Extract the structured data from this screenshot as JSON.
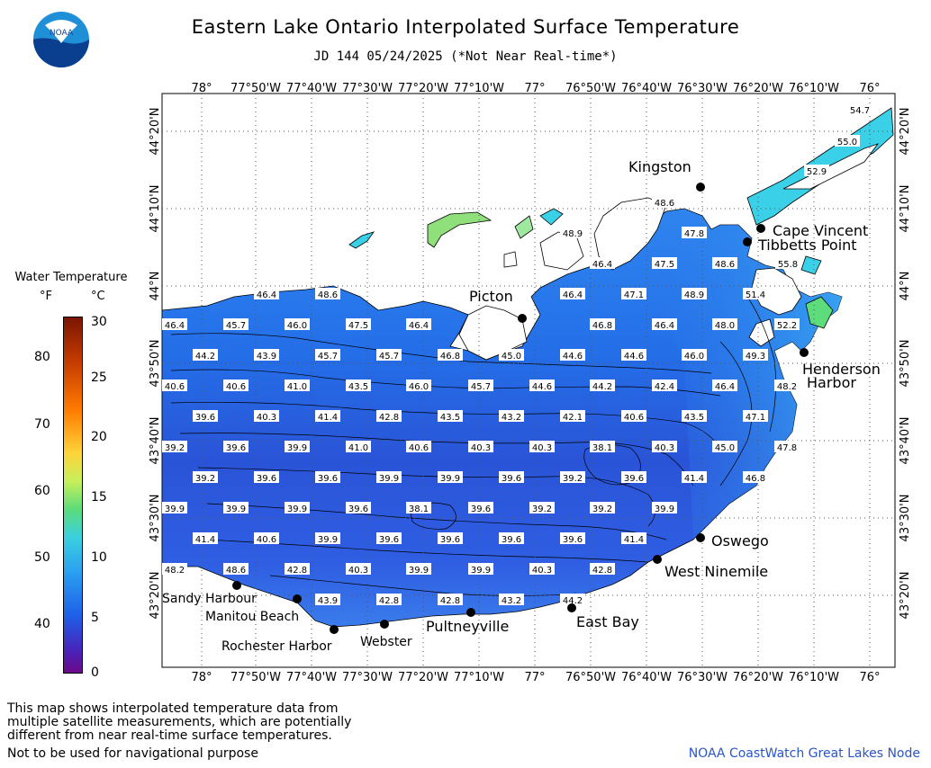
{
  "title": "Eastern Lake Ontario Interpolated Surface Temperature",
  "subtitle": "JD 144 05/24/2025 (*Not Near Real-time*)",
  "logo_text": "NOAA",
  "legend": {
    "title": "Water Temperature",
    "unit_f": "°F",
    "unit_c": "°C",
    "ticks_f": [
      "80",
      "70",
      "60",
      "50",
      "40"
    ],
    "ticks_c": [
      "30",
      "25",
      "20",
      "15",
      "10",
      "5",
      "0"
    ],
    "colors": [
      "#6a0a8a",
      "#4a22b8",
      "#1e5fe8",
      "#2a9ef0",
      "#3ad0e0",
      "#5cdc7a",
      "#c8f05a",
      "#ffd23a",
      "#ff7a00",
      "#c23a00",
      "#7a1500"
    ]
  },
  "axes": {
    "lon_labels": [
      "78°",
      "77°50'W",
      "77°40'W",
      "77°30'W",
      "77°20'W",
      "77°10'W",
      "77°",
      "76°50'W",
      "76°40'W",
      "76°30'W",
      "76°20'W",
      "76°10'W",
      "76°"
    ],
    "lat_labels": [
      "44°20'N",
      "44°10'N",
      "44°N",
      "43°50'N",
      "43°40'N",
      "43°30'N",
      "43°20'N"
    ]
  },
  "places": [
    {
      "name": "Kingston"
    },
    {
      "name": "Cape Vincent"
    },
    {
      "name": "Tibbetts Point"
    },
    {
      "name": "Picton"
    },
    {
      "name": "Henderson"
    },
    {
      "name": "Harbor"
    },
    {
      "name": "Oswego"
    },
    {
      "name": "West Ninemile"
    },
    {
      "name": "East Bay"
    },
    {
      "name": "Pultneyville"
    },
    {
      "name": "Webster"
    },
    {
      "name": "Rochester Harbor"
    },
    {
      "name": "Manitou Beach"
    },
    {
      "name": "Sandy Harbour"
    }
  ],
  "temperature_labels": [
    "54.7",
    "55.0",
    "52.9",
    "48.6",
    "48.9",
    "47.8",
    "46.4",
    "47.5",
    "48.6",
    "55.8",
    "46.4",
    "47.1",
    "48.9",
    "51.4",
    "46.4",
    "48.6",
    "46.8",
    "46.4",
    "48.0",
    "52.2",
    "46.4",
    "45.7",
    "46.0",
    "47.5",
    "46.4",
    "44.2",
    "43.9",
    "45.7",
    "45.7",
    "46.8",
    "45.0",
    "44.6",
    "44.6",
    "46.0",
    "49.3",
    "40.6",
    "40.6",
    "41.0",
    "43.5",
    "46.0",
    "45.7",
    "44.6",
    "44.2",
    "42.4",
    "46.4",
    "48.2",
    "39.6",
    "40.3",
    "41.4",
    "42.8",
    "43.5",
    "43.2",
    "42.1",
    "40.6",
    "43.5",
    "47.1",
    "39.2",
    "39.6",
    "39.9",
    "41.0",
    "40.6",
    "40.3",
    "40.3",
    "38.1",
    "40.3",
    "45.0",
    "47.8",
    "39.2",
    "39.6",
    "39.6",
    "39.9",
    "39.9",
    "39.6",
    "39.2",
    "39.6",
    "41.4",
    "46.8",
    "39.9",
    "39.9",
    "39.9",
    "39.6",
    "38.1",
    "39.6",
    "39.2",
    "39.2",
    "39.9",
    "41.4",
    "40.6",
    "39.9",
    "39.6",
    "39.6",
    "39.6",
    "39.6",
    "41.4",
    "48.2",
    "48.6",
    "42.8",
    "40.3",
    "39.9",
    "39.9",
    "40.3",
    "42.8",
    "43.9",
    "42.8",
    "42.8",
    "43.2",
    "44.2"
  ],
  "footnote_lines": [
    "This map shows interpolated temperature data from",
    "multiple satellite measurements, which are potentially",
    "different from near real-time surface temperatures."
  ],
  "warning": "Not to be used for navigational purpose",
  "credit": "NOAA CoastWatch Great Lakes Node"
}
